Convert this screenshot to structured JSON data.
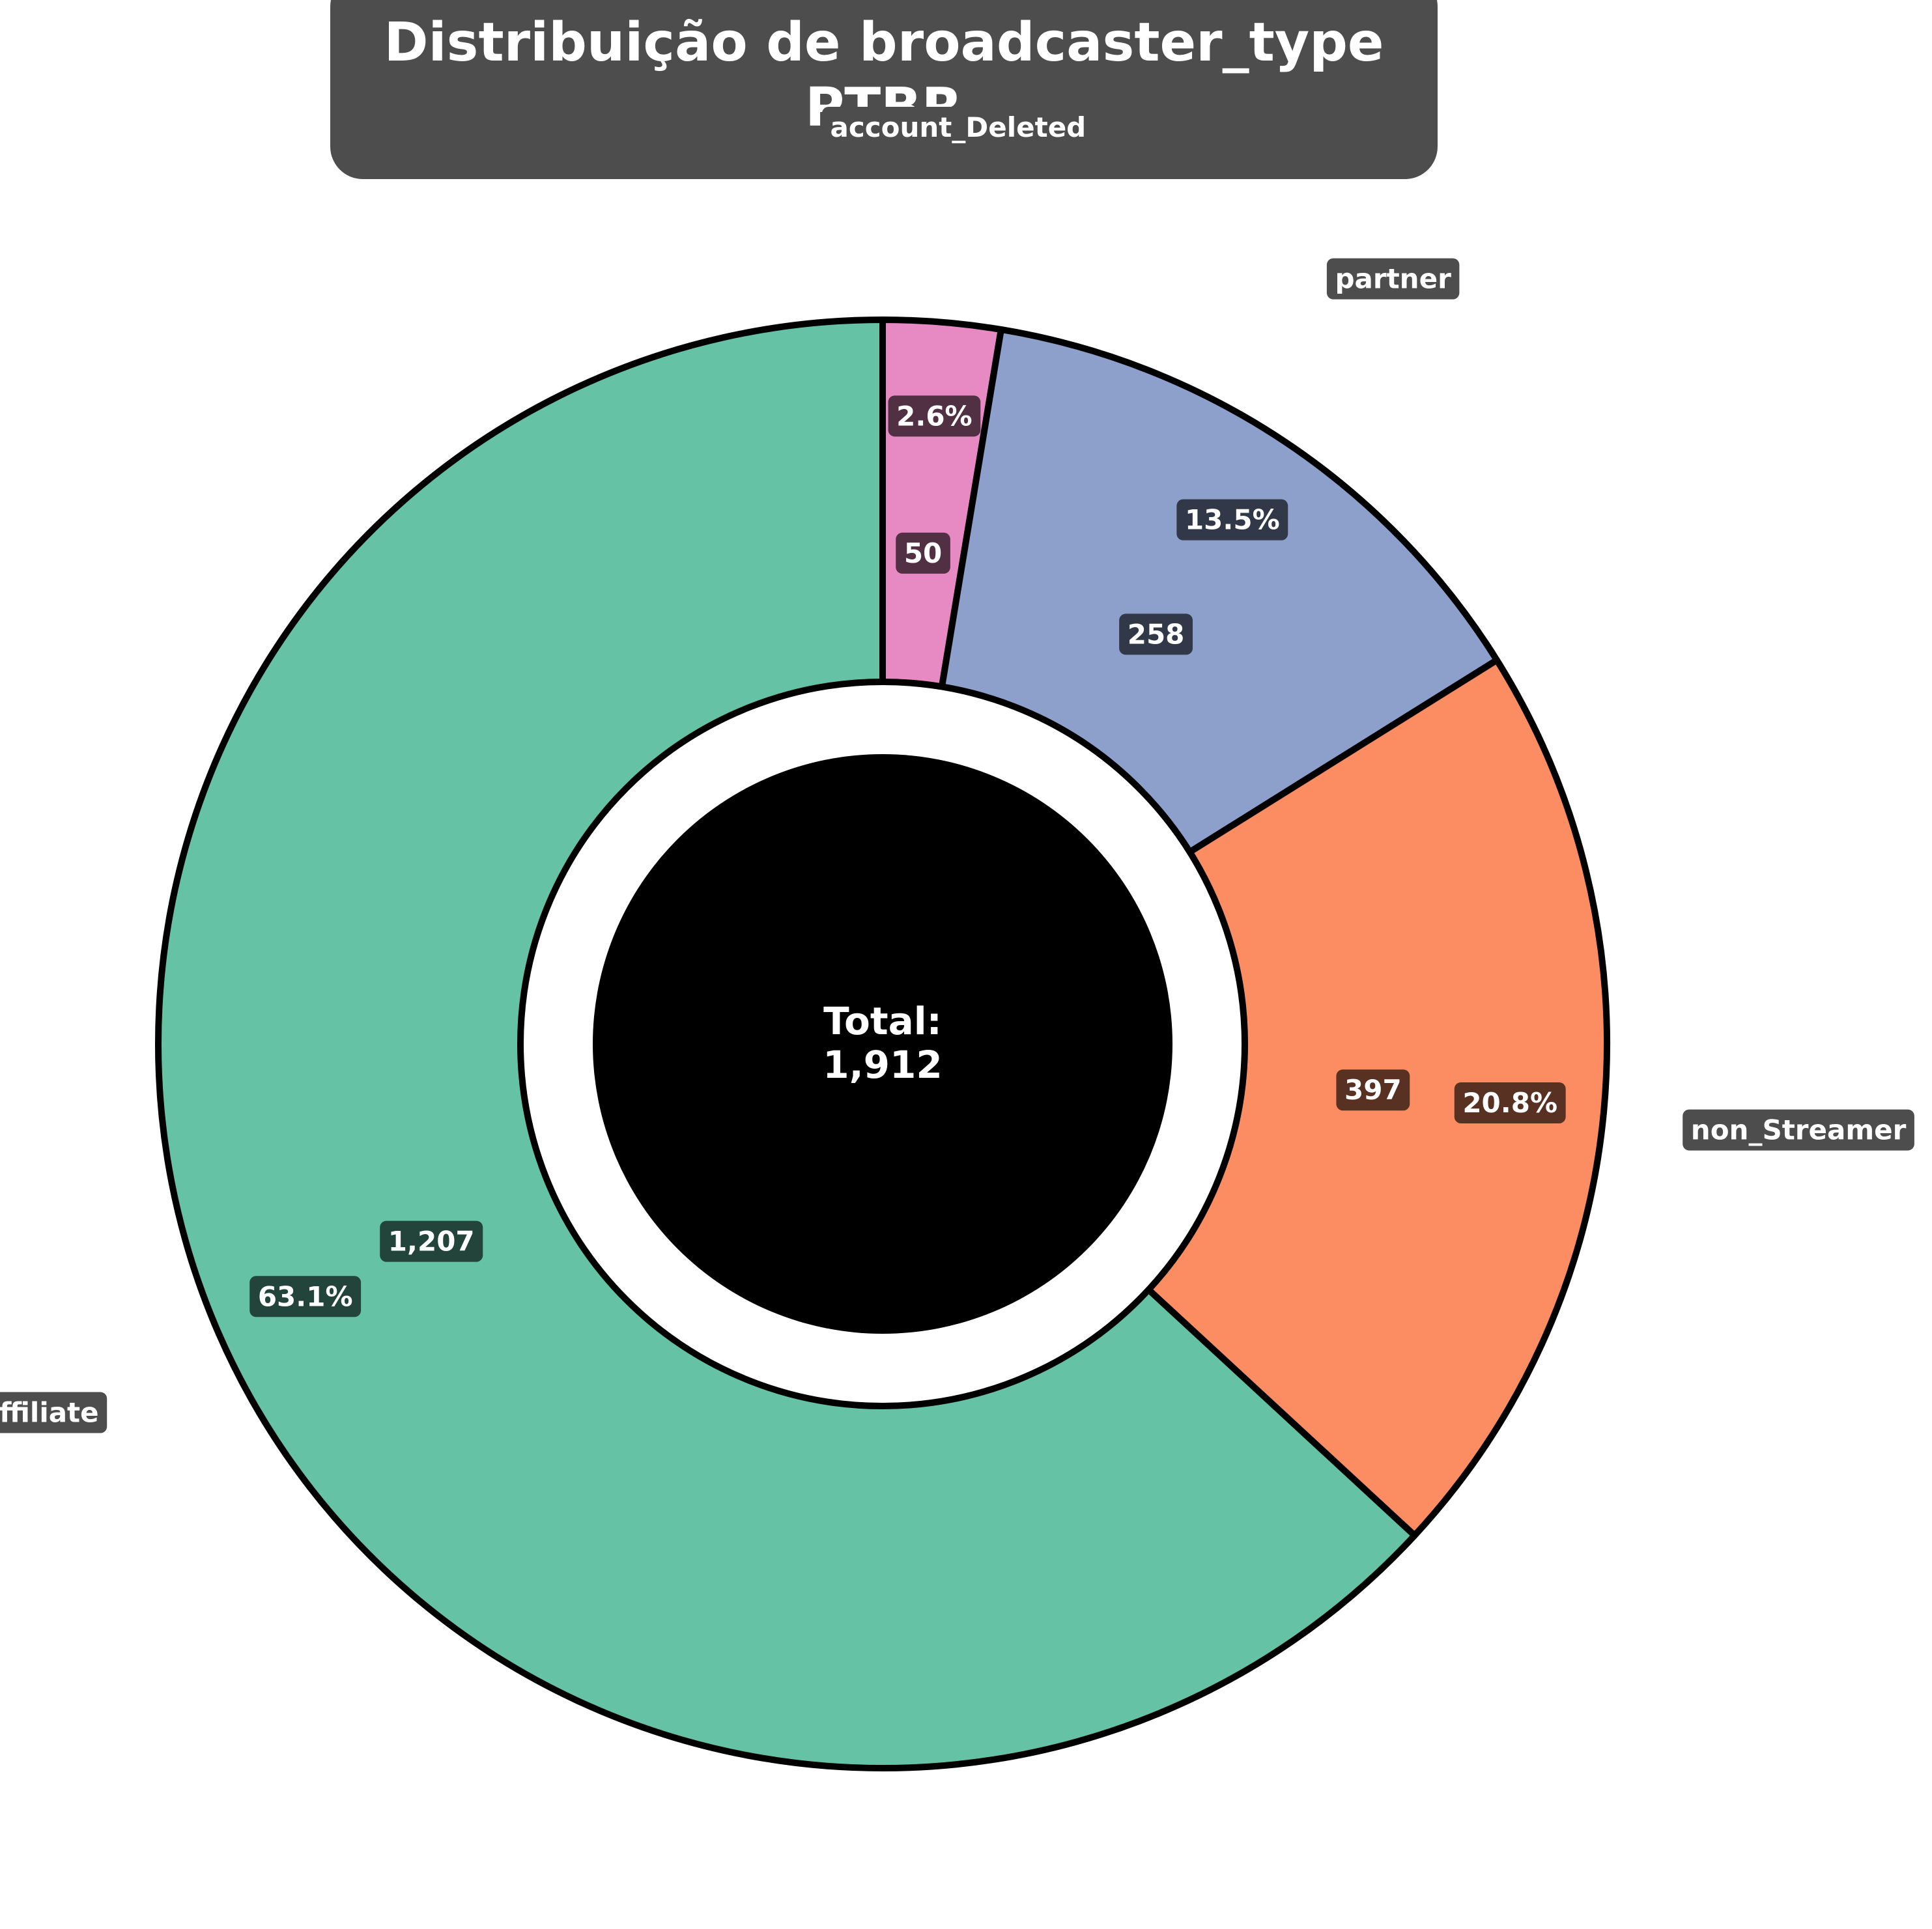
{
  "chart_data": {
    "type": "pie",
    "style": "donut",
    "title": "Distribuição de broadcaster_type\nPTBR",
    "title_lines": [
      "Distribuição de broadcaster_type",
      "PTBR"
    ],
    "categories": [
      "account_Deleted",
      "partner",
      "non_Streamer",
      "affiliate"
    ],
    "values": [
      50,
      258,
      397,
      1207
    ],
    "value_labels": [
      "50",
      "258",
      "397",
      "1,207"
    ],
    "percent_labels": [
      "2.6%",
      "13.5%",
      "20.8%",
      "63.1%"
    ],
    "center_label": [
      "Total:",
      "1,912"
    ],
    "start_angle": "top",
    "direction": "clockwise"
  },
  "colors": {
    "account_Deleted": "#e78ac3",
    "partner": "#8da0cb",
    "non_Streamer": "#fc8d62",
    "affiliate": "#66c2a5",
    "label_box": "#4d4d4d",
    "edge": "#000000",
    "center_circle": "#000000"
  }
}
